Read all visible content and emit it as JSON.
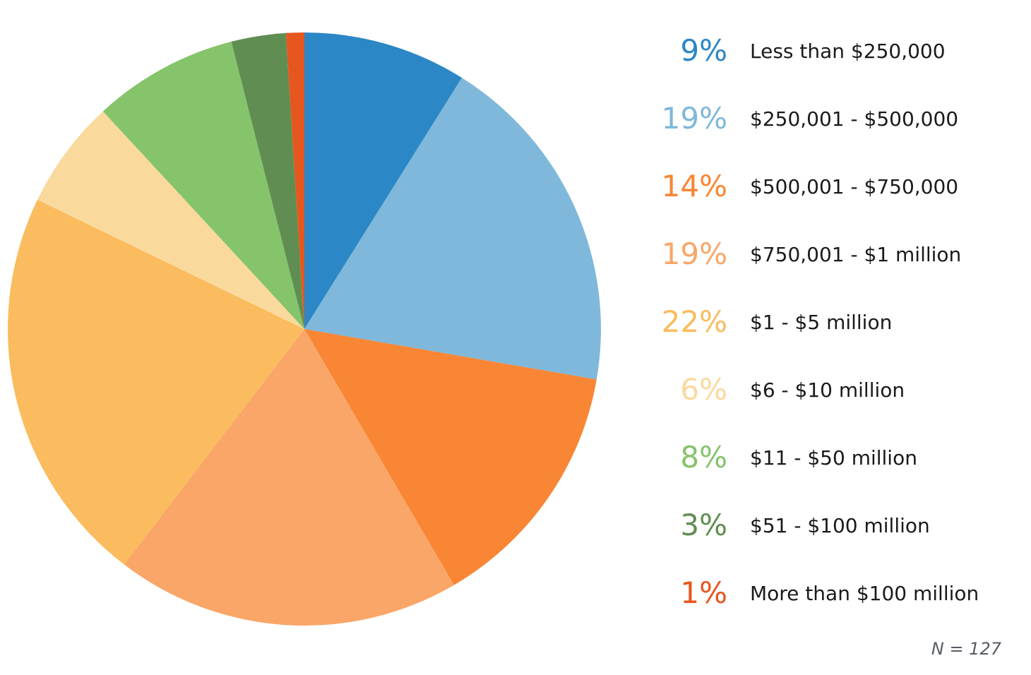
{
  "chart_data": {
    "type": "pie",
    "title": "",
    "categories": [
      "Less than $250,000",
      "$250,001 - $500,000",
      "$500,001 - $750,000",
      "$750,001 - $1 million",
      "$1 - $5 million",
      "$6 - $10 million",
      "$11 - $50 million",
      "$51 - $100 million",
      "More than $100 million"
    ],
    "values": [
      9,
      19,
      14,
      19,
      22,
      6,
      8,
      3,
      1
    ],
    "unit": "%",
    "percent_labels": [
      "9%",
      "19%",
      "14%",
      "19%",
      "22%",
      "6%",
      "8%",
      "3%",
      "1%"
    ],
    "colors": [
      "#2B87C5",
      "#7FB8DA",
      "#F98634",
      "#FAA668",
      "#FABC5E",
      "#FAD99D",
      "#85C46B",
      "#608E52",
      "#E5571E"
    ],
    "label_text_color": "#1A1A1A",
    "footnote": "N = 127",
    "footnote_color": "#575C66",
    "start_angle": "top (12 o'clock), clockwise",
    "legend_position": "right",
    "grid": "off"
  }
}
